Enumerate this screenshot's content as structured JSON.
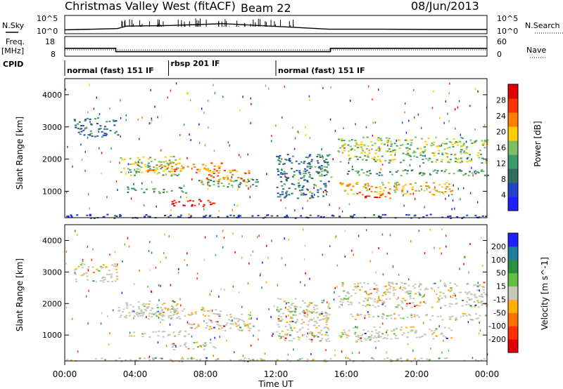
{
  "header": {
    "station": "Christmas Valley West (fitACF)",
    "beam": "Beam 22",
    "date": "08/Jun/2013"
  },
  "colors": {
    "power": [
      "#1f1fff",
      "#2244cc",
      "#2f6e5e",
      "#3d9a6a",
      "#7cc060",
      "#ffcc00",
      "#ff8000",
      "#ff3300",
      "#e00000"
    ],
    "velocity": [
      "#1f1fff",
      "#1f7f9f",
      "#2b8f3f",
      "#60c040",
      "#c8c8b8",
      "#ffb000",
      "#ff7000",
      "#ff3000",
      "#e00000"
    ],
    "background": "#ffffff"
  },
  "chart_data": [
    {
      "id": "nsky",
      "type": "line",
      "ylabel": "N.Sky",
      "ylabel_right": "N.Search",
      "yticks_left": [
        "10^5",
        "10^0"
      ],
      "yticks_right": [
        "10^5",
        "10^0"
      ],
      "x": [
        0,
        3,
        3.5,
        6,
        9,
        12,
        15,
        18,
        21,
        24
      ],
      "series": [
        {
          "values": [
            0.8,
            1.2,
            2.0,
            2.2,
            2.8,
            1.9,
            1.0,
            1.0,
            0.9,
            0.9
          ]
        }
      ]
    },
    {
      "id": "freq",
      "type": "line",
      "ylabel": "Freq.",
      "yunit": "[MHz]",
      "ylabel_right": "Nave",
      "yticks_left": [
        "18",
        "8"
      ],
      "yticks_right": [
        "60",
        "0"
      ],
      "x": [
        0,
        2.9,
        2.9,
        15.1,
        15.1,
        24
      ],
      "series": [
        {
          "values": [
            12.0,
            12.0,
            10.3,
            10.3,
            12.0,
            12.0
          ]
        }
      ]
    },
    {
      "id": "cpid",
      "type": "table",
      "label": "CPID",
      "segments": [
        {
          "start": 0,
          "end": 5.9,
          "name": "normal (fast) 151 IF"
        },
        {
          "start": 5.9,
          "end": 12.0,
          "name": "rbsp 201 IF"
        },
        {
          "start": 12.0,
          "end": 24,
          "name": "normal (fast) 151 IF"
        }
      ]
    },
    {
      "id": "power",
      "type": "heatmap",
      "ylabel": "Slant Range [km]",
      "colorbar_label": "Power [dB]",
      "colorbar_ticks": [
        4,
        8,
        12,
        16,
        20,
        24,
        28
      ],
      "xlim": [
        0,
        24
      ],
      "ylim": [
        180,
        4500
      ],
      "yticks": [
        1000,
        2000,
        3000,
        4000
      ],
      "grid": false
    },
    {
      "id": "velocity",
      "type": "heatmap",
      "ylabel": "Slant Range [km]",
      "xlabel": "Time UT",
      "colorbar_label": "Velocity [m s^-1]",
      "colorbar_ticks": [
        200,
        100,
        50,
        15,
        -15,
        -50,
        -100,
        -200
      ],
      "xlim": [
        0,
        24
      ],
      "ylim": [
        180,
        4500
      ],
      "yticks": [
        1000,
        2000,
        3000,
        4000
      ],
      "xticks": [
        "00:00",
        "04:00",
        "08:00",
        "12:00",
        "16:00",
        "20:00",
        "00:00"
      ],
      "grid": false
    }
  ]
}
